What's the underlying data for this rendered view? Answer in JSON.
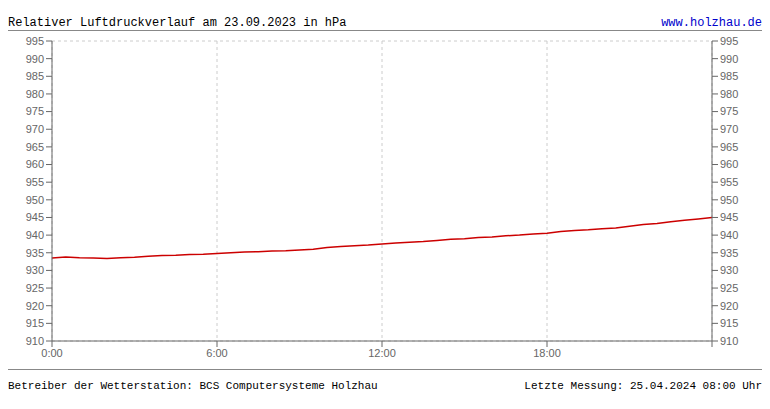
{
  "chart_data": {
    "type": "line",
    "title": "Relativer Luftdruckverlauf am 23.09.2023 in hPa",
    "url": "www.holzhau.de",
    "footer_left": "Betreiber der Wetterstation: BCS Computersysteme Holzhau",
    "footer_right": "Letzte Messung: 25.04.2024 08:00 Uhr",
    "x": [
      0,
      30,
      60,
      90,
      120,
      150,
      180,
      210,
      240,
      270,
      300,
      330,
      360,
      390,
      420,
      450,
      480,
      510,
      540,
      570,
      600,
      630,
      660,
      690,
      720,
      750,
      780,
      810,
      840,
      870,
      900,
      930,
      960,
      990,
      1020,
      1050,
      1080,
      1110,
      1140,
      1170,
      1200,
      1230,
      1260,
      1290,
      1320,
      1350,
      1380,
      1410,
      1440
    ],
    "values": [
      933.5,
      933.8,
      933.6,
      933.5,
      933.4,
      933.6,
      933.7,
      934.0,
      934.2,
      934.3,
      934.5,
      934.6,
      934.8,
      935.0,
      935.2,
      935.3,
      935.5,
      935.6,
      935.8,
      936.0,
      936.5,
      936.8,
      937.0,
      937.2,
      937.5,
      937.8,
      938.0,
      938.2,
      938.5,
      938.8,
      939.0,
      939.3,
      939.5,
      939.8,
      940.0,
      940.3,
      940.5,
      941.0,
      941.3,
      941.5,
      941.8,
      942.0,
      942.5,
      943.0,
      943.3,
      943.8,
      944.2,
      944.6,
      945.0
    ],
    "color": "#cc0000",
    "xlim": [
      0,
      1440
    ],
    "xticks": [
      {
        "value": 0,
        "label": "0:00"
      },
      {
        "value": 360,
        "label": "6:00"
      },
      {
        "value": 720,
        "label": "12:00"
      },
      {
        "value": 1080,
        "label": "18:00"
      },
      {
        "value": 1440,
        "label": null
      }
    ],
    "ylim": [
      910,
      995
    ],
    "yticks": [
      910,
      915,
      920,
      925,
      930,
      935,
      940,
      945,
      950,
      955,
      960,
      965,
      970,
      975,
      980,
      985,
      990,
      995
    ],
    "y2lim": [
      910,
      995
    ],
    "y2ticks": [
      910,
      915,
      920,
      925,
      930,
      935,
      940,
      945,
      950,
      955,
      960,
      965,
      970,
      975,
      980,
      985,
      990,
      995
    ],
    "grid": true
  }
}
